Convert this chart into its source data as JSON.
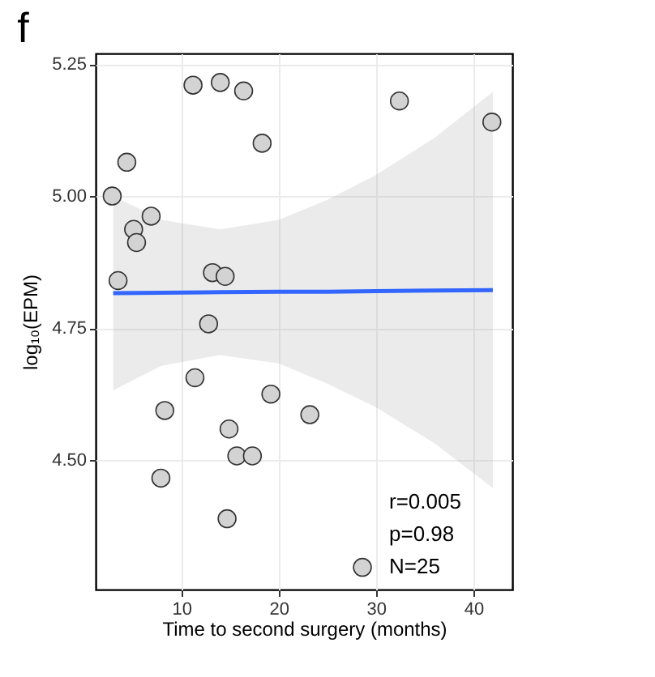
{
  "chart_data": {
    "type": "scatter",
    "title": "f",
    "xlabel": "Time to second surgery (months)",
    "ylabel": "log₁₀(EPM)",
    "annotations": [
      "r=0.005",
      "p=0.98",
      "N=25"
    ],
    "series": [
      {
        "marker": "circle",
        "color": "#d3d3d3",
        "x": [
          2.9,
          4.4,
          11.2,
          14.0,
          16.4,
          18.3,
          32.4,
          41.9,
          6.9,
          5.1,
          5.4,
          3.5,
          13.2,
          14.5,
          12.8,
          11.4,
          19.2,
          8.3,
          23.2,
          14.9,
          15.7,
          17.3,
          7.9,
          14.7,
          28.6
        ],
        "values": [
          5.0,
          5.064,
          5.21,
          5.215,
          5.199,
          5.1,
          5.18,
          5.14,
          4.962,
          4.937,
          4.912,
          4.84,
          4.855,
          4.848,
          4.758,
          4.656,
          4.625,
          4.594,
          4.586,
          4.559,
          4.508,
          4.508,
          4.466,
          4.389,
          4.297
        ]
      },
      {
        "type": "line",
        "color": "#3366ff",
        "x": [
          3,
          8,
          14,
          20,
          25,
          30,
          36,
          42
        ],
        "values": [
          4.816,
          4.817,
          4.818,
          4.819,
          4.819,
          4.82,
          4.821,
          4.822
        ],
        "lower": [
          4.632,
          4.679,
          4.699,
          4.683,
          4.645,
          4.6,
          4.532,
          4.447
        ],
        "upper": [
          5.0,
          4.955,
          4.937,
          4.955,
          4.993,
          5.04,
          5.11,
          5.197
        ]
      }
    ],
    "xlim": [
      1.2,
      44
    ],
    "ylim": [
      4.255,
      5.27
    ],
    "xticks": [
      10,
      20,
      30,
      40
    ],
    "yticks": [
      {
        "value": 4.5,
        "label": "4.50"
      },
      {
        "value": 4.75,
        "label": "4.75"
      },
      {
        "value": 5.0,
        "label": "5.00"
      },
      {
        "value": 5.25,
        "label": "5.25"
      }
    ],
    "grid": true
  }
}
